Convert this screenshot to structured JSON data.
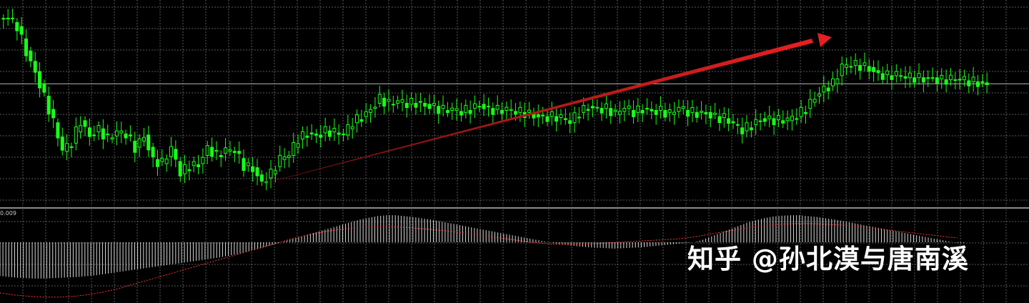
{
  "window": {
    "background": "#000000"
  },
  "colors": {
    "grid": "#5a5a5a",
    "candle": "#19ff19",
    "trend_arrow": "#e62020",
    "price_line": "#b8b8b8",
    "histogram": "#ffffff",
    "signal": "#ff3030",
    "separator": "#8a8a8a"
  },
  "indicator_label": "0.009",
  "watermark": "知乎 @孙北漠与唐南溪",
  "chart_data": [
    {
      "type": "candlestick",
      "title": "",
      "series": [
        {
          "name": "",
          "note": "price candles — closing levels sampled across the visible window",
          "values": [
            1.3,
            1.296,
            1.284,
            1.274,
            1.262,
            1.249,
            1.235,
            1.239,
            1.25,
            1.243,
            1.246,
            1.241,
            1.244,
            1.243,
            1.237,
            1.243,
            1.231,
            1.229,
            1.236,
            1.224,
            1.228,
            1.229,
            1.237,
            1.233,
            1.235,
            1.235,
            1.228,
            1.227,
            1.22,
            1.224,
            1.231,
            1.233,
            1.241,
            1.244,
            1.243,
            1.245,
            1.244,
            1.243,
            1.249,
            1.252,
            1.256,
            1.261,
            1.258,
            1.259,
            1.258,
            1.259,
            1.258,
            1.257,
            1.255,
            1.255,
            1.254,
            1.256,
            1.258,
            1.256,
            1.255,
            1.255,
            1.254,
            1.254,
            1.253,
            1.252,
            1.252,
            1.251,
            1.249,
            1.254,
            1.257,
            1.256,
            1.256,
            1.253,
            1.256,
            1.254,
            1.256,
            1.255,
            1.255,
            1.253,
            1.256,
            1.254,
            1.254,
            1.254,
            1.252,
            1.251,
            1.248,
            1.245,
            1.248,
            1.251,
            1.251,
            1.25,
            1.25,
            1.252,
            1.256,
            1.262,
            1.266,
            1.268,
            1.276,
            1.277,
            1.277,
            1.276,
            1.273,
            1.272,
            1.272,
            1.271,
            1.271,
            1.271,
            1.271,
            1.27,
            1.27,
            1.27,
            1.269,
            1.269,
            1.268
          ]
        }
      ],
      "annotations": [
        {
          "type": "arrow",
          "note": "rising trend arrow from swing low to swing high"
        }
      ],
      "current_price_line": true,
      "grid": true
    },
    {
      "type": "bar",
      "title": "",
      "series": [
        {
          "name": "",
          "note": "histogram values in pane units",
          "values": [
            -0.008,
            -0.0082,
            -0.0084,
            -0.0085,
            -0.0086,
            -0.0086,
            -0.0085,
            -0.0084,
            -0.0083,
            -0.0082,
            -0.008,
            -0.0078,
            -0.0075,
            -0.0072,
            -0.0069,
            -0.0066,
            -0.0063,
            -0.006,
            -0.0057,
            -0.0054,
            -0.0051,
            -0.0048,
            -0.0045,
            -0.0042,
            -0.0039,
            -0.0036,
            -0.0032,
            -0.0028,
            -0.0023,
            -0.0018,
            -0.0012,
            -0.0006,
            0.0,
            0.0006,
            0.0012,
            0.0018,
            0.0024,
            0.003,
            0.0036,
            0.0042,
            0.0048,
            0.0054,
            0.0058,
            0.0062,
            0.0064,
            0.0064,
            0.0062,
            0.006,
            0.0057,
            0.0054,
            0.005,
            0.0046,
            0.0042,
            0.0038,
            0.0034,
            0.003,
            0.0026,
            0.0022,
            0.0018,
            0.0014,
            0.001,
            0.0006,
            0.0002,
            -0.0002,
            -0.0005,
            -0.0008,
            -0.001,
            -0.0012,
            -0.0013,
            -0.0014,
            -0.0015,
            -0.0014,
            -0.0013,
            -0.0012,
            -0.001,
            -0.0008,
            -0.0006,
            -0.0004,
            -0.0002,
            0.0,
            0.0006,
            0.0014,
            0.0022,
            0.003,
            0.0038,
            0.0046,
            0.0052,
            0.0057,
            0.0061,
            0.0063,
            0.0064,
            0.0064,
            0.0062,
            0.006,
            0.0057,
            0.0054,
            0.005,
            0.0046,
            0.0042,
            0.0038,
            0.0034,
            0.003,
            0.0026,
            0.0022,
            0.0018,
            0.0014,
            0.001,
            0.0006,
            0.0002,
            -0.0002
          ]
        },
        {
          "name": "",
          "note": "signal line (dotted red)",
          "values": [
            -0.012,
            -0.0125,
            -0.0128,
            -0.013,
            -0.013,
            -0.0128,
            -0.0124,
            -0.0118,
            -0.011,
            -0.01,
            -0.009,
            -0.008,
            -0.007,
            -0.006,
            -0.005,
            -0.004,
            -0.003,
            -0.002,
            -0.001,
            0.0,
            0.001,
            0.0018,
            0.0025,
            0.003,
            0.0034,
            0.0036,
            0.0037,
            0.0036,
            0.0034,
            0.0031,
            0.0028,
            0.0024,
            0.002,
            0.0015,
            0.001,
            0.0005,
            0.0,
            -0.0003,
            -0.0005,
            -0.0005,
            -0.0004,
            -0.0002,
            0.0,
            0.0002,
            0.0004,
            0.0006,
            0.0008,
            0.0012,
            0.0018,
            0.0024,
            0.003,
            0.0036,
            0.004,
            0.0043,
            0.0044,
            0.0044,
            0.0043,
            0.0041,
            0.0038,
            0.0034,
            0.003,
            0.0026,
            0.0022,
            0.0018,
            0.0014,
            0.001
          ]
        }
      ],
      "ylabel_value": "0.009",
      "grid": true
    }
  ]
}
